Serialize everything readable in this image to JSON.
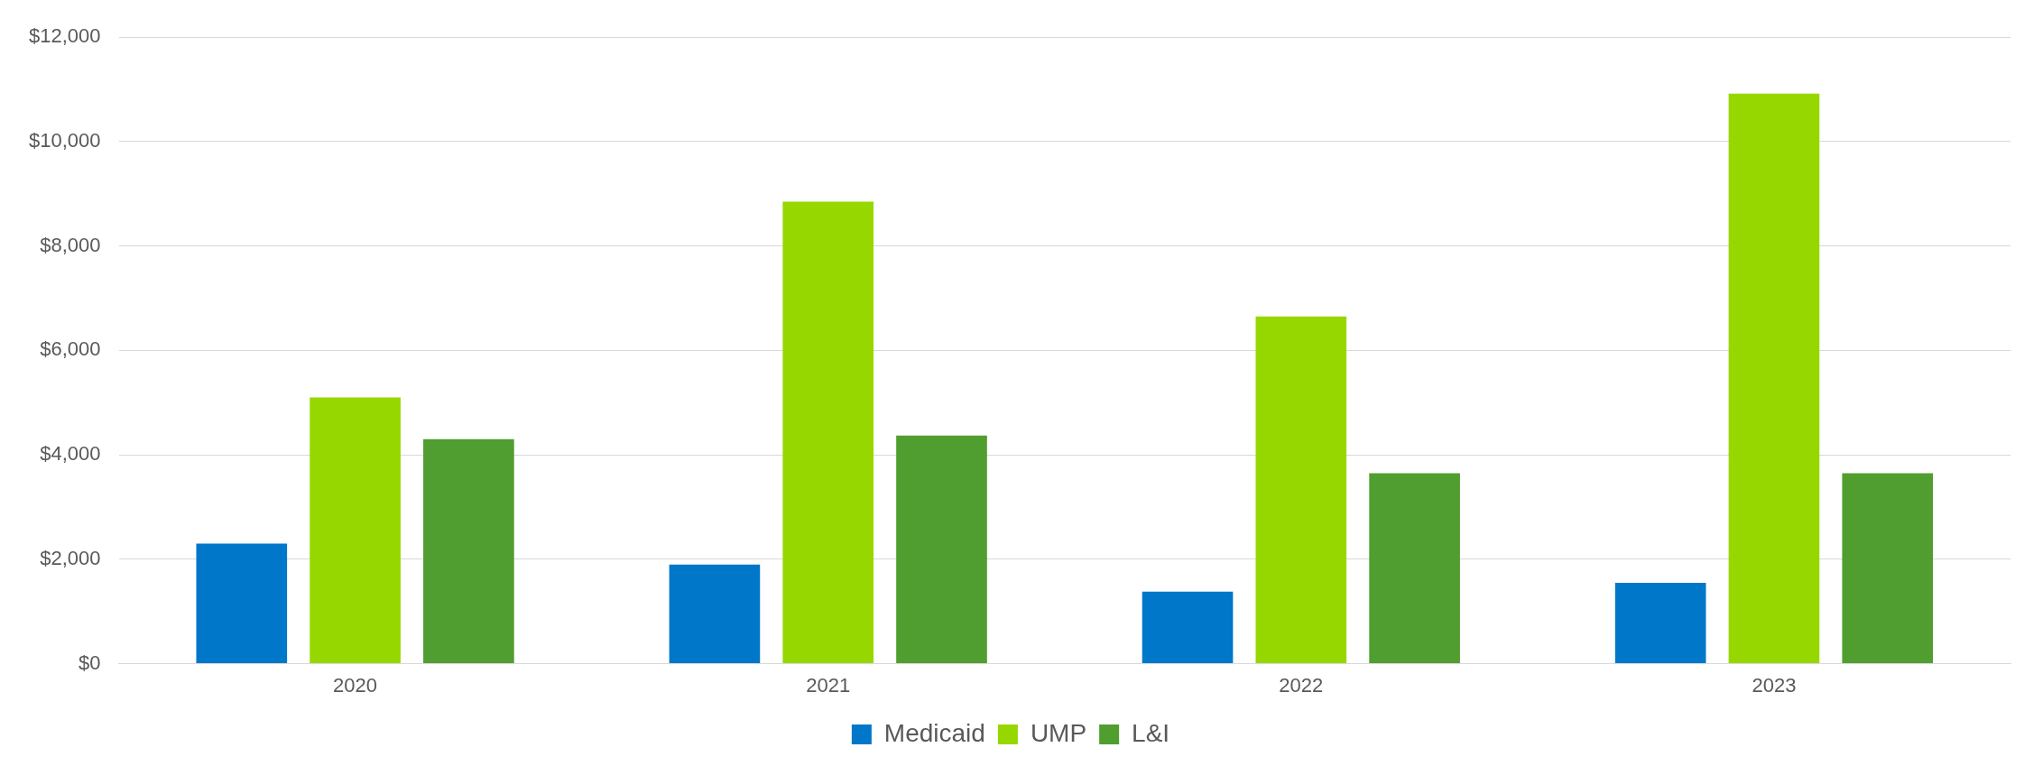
{
  "chart_data": {
    "type": "bar",
    "categories": [
      "2020",
      "2021",
      "2022",
      "2023"
    ],
    "series": [
      {
        "name": "Medicaid",
        "color": "#0077c8",
        "values": [
          2300,
          1900,
          1380,
          1550
        ]
      },
      {
        "name": "UMP",
        "color": "#97d700",
        "values": [
          5100,
          8850,
          6650,
          10920
        ]
      },
      {
        "name": "L&I",
        "color": "#509e2f",
        "values": [
          4300,
          4370,
          3650,
          3650
        ]
      }
    ],
    "ylim": [
      0,
      12000
    ],
    "yticks": [
      {
        "value": 0,
        "label": "$0"
      },
      {
        "value": 2000,
        "label": "$2,000"
      },
      {
        "value": 4000,
        "label": "$4,000"
      },
      {
        "value": 6000,
        "label": "$6,000"
      },
      {
        "value": 8000,
        "label": "$8,000"
      },
      {
        "value": 10000,
        "label": "$10,000"
      },
      {
        "value": 12000,
        "label": "$12,000"
      }
    ],
    "grid": "y",
    "legend": "bottom"
  }
}
